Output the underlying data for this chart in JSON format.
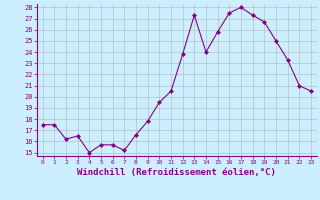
{
  "x": [
    0,
    1,
    2,
    3,
    4,
    5,
    6,
    7,
    8,
    9,
    10,
    11,
    12,
    13,
    14,
    15,
    16,
    17,
    18,
    19,
    20,
    21,
    22,
    23
  ],
  "y": [
    17.5,
    17.5,
    16.2,
    16.5,
    15.0,
    15.7,
    15.7,
    15.2,
    16.6,
    17.8,
    19.5,
    20.5,
    23.8,
    27.3,
    24.0,
    25.8,
    27.5,
    28.0,
    27.3,
    26.7,
    25.0,
    23.3,
    21.0,
    20.5
  ],
  "line_color": "#880088",
  "marker": "D",
  "marker_size": 2.0,
  "background_color": "#cceeff",
  "grid_color": "#b0b8b0",
  "xlabel": "Windchill (Refroidissement éolien,°C)",
  "xlabel_fontsize": 6.5,
  "tick_color": "#880088",
  "tick_label_color": "#880088",
  "ylim": [
    15,
    28
  ],
  "yticks": [
    15,
    16,
    17,
    18,
    19,
    20,
    21,
    22,
    23,
    24,
    25,
    26,
    27,
    28
  ],
  "xlim": [
    -0.5,
    23.5
  ],
  "xticks": [
    0,
    1,
    2,
    3,
    4,
    5,
    6,
    7,
    8,
    9,
    10,
    11,
    12,
    13,
    14,
    15,
    16,
    17,
    18,
    19,
    20,
    21,
    22,
    23
  ]
}
